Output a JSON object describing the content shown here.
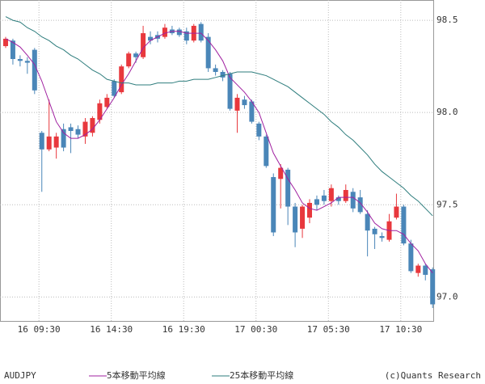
{
  "chart_data": {
    "type": "candlestick",
    "symbol": "AUDJPY",
    "credit": "(c)Quants Research",
    "up_color": "#e8383d",
    "down_color": "#4a86b8",
    "grid": true,
    "x": [
      0,
      1,
      2,
      3,
      4,
      5,
      6,
      7,
      8,
      9,
      10,
      11,
      12,
      13,
      14,
      15,
      16,
      17,
      18,
      19,
      20,
      21,
      22,
      23,
      24,
      25,
      26,
      27,
      28,
      29,
      30,
      31,
      32,
      33,
      34,
      35,
      36,
      37,
      38,
      39,
      40,
      41,
      42,
      43,
      44,
      45,
      46,
      47,
      48,
      49,
      50,
      51,
      52,
      53,
      54,
      55,
      56,
      57,
      58,
      59
    ],
    "xlim": [
      -0.78,
      59.2
    ],
    "xticks": [
      {
        "value": 4.6,
        "label": "16 09:30"
      },
      {
        "value": 14.6,
        "label": "16 14:30"
      },
      {
        "value": 24.6,
        "label": "16 19:30"
      },
      {
        "value": 34.6,
        "label": "17 00:30"
      },
      {
        "value": 44.6,
        "label": "17 05:30"
      },
      {
        "value": 54.6,
        "label": "17 10:30"
      }
    ],
    "ylim": [
      96.87,
      98.61
    ],
    "yticks": [
      {
        "value": 97.0,
        "label": "97.0"
      },
      97.5,
      {
        "value": 98.0,
        "label": "98.0"
      },
      98.5
    ],
    "open": [
      98.36,
      98.39,
      98.29,
      98.28,
      98.34,
      97.89,
      97.8,
      97.81,
      97.91,
      97.92,
      97.91,
      97.87,
      97.89,
      97.96,
      98.03,
      98.17,
      98.11,
      98.25,
      98.32,
      98.3,
      98.41,
      98.42,
      98.41,
      98.45,
      98.45,
      98.44,
      98.39,
      98.48,
      98.41,
      98.24,
      98.22,
      98.21,
      98.01,
      98.07,
      98.06,
      97.94,
      97.87,
      97.65,
      97.64,
      97.69,
      97.49,
      97.37,
      97.43,
      97.53,
      97.55,
      97.52,
      97.54,
      97.52,
      97.57,
      97.54,
      97.45,
      97.37,
      97.33,
      97.31,
      97.43,
      97.49,
      97.29,
      97.13,
      97.17,
      97.15
    ],
    "high": [
      98.41,
      98.4,
      98.31,
      98.3,
      98.35,
      97.9,
      98.07,
      97.89,
      97.94,
      97.94,
      97.93,
      97.97,
      97.98,
      98.07,
      98.1,
      98.18,
      98.26,
      98.33,
      98.33,
      98.47,
      98.44,
      98.44,
      98.48,
      98.47,
      98.46,
      98.46,
      98.48,
      98.49,
      98.43,
      98.26,
      98.23,
      98.22,
      98.1,
      98.09,
      98.07,
      97.95,
      97.88,
      97.67,
      97.72,
      97.7,
      97.51,
      97.5,
      97.53,
      97.55,
      97.58,
      97.61,
      97.55,
      97.61,
      97.59,
      97.58,
      97.47,
      97.38,
      97.35,
      97.45,
      97.56,
      97.5,
      97.31,
      97.18,
      97.18,
      97.16
    ],
    "low": [
      98.35,
      98.26,
      98.25,
      98.21,
      98.1,
      97.57,
      97.79,
      97.75,
      97.79,
      97.78,
      97.86,
      97.83,
      97.87,
      97.94,
      98.02,
      98.08,
      98.1,
      98.24,
      98.27,
      98.29,
      98.37,
      98.38,
      98.4,
      98.42,
      98.41,
      98.37,
      98.38,
      98.38,
      98.22,
      98.2,
      98.17,
      98.01,
      97.89,
      98.02,
      97.94,
      97.85,
      97.7,
      97.33,
      97.48,
      97.39,
      97.27,
      97.32,
      97.4,
      97.47,
      97.5,
      97.49,
      97.5,
      97.51,
      97.46,
      97.45,
      97.22,
      97.26,
      97.3,
      97.3,
      97.42,
      97.28,
      97.13,
      97.11,
      97.09,
      96.94
    ],
    "close": [
      98.4,
      98.29,
      98.28,
      98.27,
      98.12,
      97.8,
      97.87,
      97.87,
      97.81,
      97.9,
      97.88,
      97.95,
      97.97,
      98.05,
      98.08,
      98.09,
      98.25,
      98.32,
      98.3,
      98.43,
      98.39,
      98.4,
      98.46,
      98.43,
      98.42,
      98.39,
      98.47,
      98.39,
      98.24,
      98.22,
      98.19,
      98.02,
      98.08,
      98.04,
      97.95,
      97.87,
      97.71,
      97.35,
      97.7,
      97.49,
      97.35,
      97.49,
      97.51,
      97.5,
      97.52,
      97.59,
      97.52,
      97.58,
      97.48,
      97.46,
      97.36,
      97.34,
      97.32,
      97.41,
      97.49,
      97.29,
      97.14,
      97.17,
      97.12,
      96.96
    ],
    "lines": [
      {
        "name": "5本移動平均線",
        "color": "#a020a0",
        "values": [
          98.4,
          98.38,
          98.355,
          98.31,
          98.26,
          98.17,
          98.06,
          97.95,
          97.89,
          97.86,
          97.86,
          97.88,
          97.91,
          97.96,
          98.02,
          98.08,
          98.15,
          98.21,
          98.28,
          98.35,
          98.39,
          98.41,
          98.43,
          98.44,
          98.44,
          98.43,
          98.43,
          98.43,
          98.39,
          98.34,
          98.28,
          98.19,
          98.15,
          98.11,
          98.06,
          98.0,
          97.89,
          97.78,
          97.71,
          97.64,
          97.58,
          97.51,
          97.48,
          97.47,
          97.49,
          97.51,
          97.54,
          97.54,
          97.54,
          97.51,
          97.46,
          97.4,
          97.37,
          97.36,
          97.36,
          97.34,
          97.29,
          97.25,
          97.18,
          97.13
        ]
      },
      {
        "name": "25本移動平均線",
        "color": "#2e7d7d",
        "values": [
          98.52,
          98.5,
          98.49,
          98.46,
          98.44,
          98.41,
          98.39,
          98.36,
          98.34,
          98.31,
          98.29,
          98.26,
          98.23,
          98.21,
          98.18,
          98.17,
          98.16,
          98.16,
          98.15,
          98.15,
          98.15,
          98.16,
          98.16,
          98.16,
          98.17,
          98.17,
          98.18,
          98.18,
          98.18,
          98.19,
          98.2,
          98.21,
          98.22,
          98.22,
          98.22,
          98.21,
          98.2,
          98.18,
          98.16,
          98.14,
          98.11,
          98.08,
          98.05,
          98.02,
          97.99,
          97.95,
          97.92,
          97.88,
          97.85,
          97.81,
          97.77,
          97.72,
          97.68,
          97.65,
          97.62,
          97.59,
          97.55,
          97.52,
          97.48,
          97.44
        ]
      }
    ]
  }
}
